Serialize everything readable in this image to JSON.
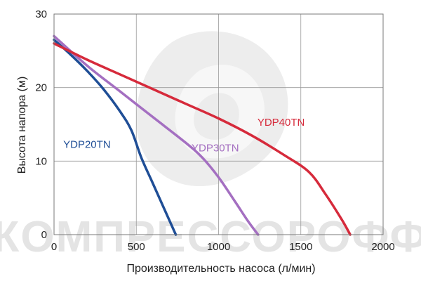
{
  "watermark_text": "КОМПРЕССОРОФФ",
  "chart_data": {
    "type": "line",
    "xlabel": "Производительность насоса (л/мин)",
    "ylabel": "Высота напора (м)",
    "xlim": [
      0,
      2000
    ],
    "ylim": [
      0,
      30
    ],
    "x_ticks": [
      "0",
      "500",
      "1000",
      "1500",
      "2000"
    ],
    "y_ticks": [
      "0",
      "10",
      "20",
      "30"
    ],
    "x_tick_values": [
      0,
      500,
      1000,
      1500,
      2000
    ],
    "y_tick_values": [
      0,
      10,
      20,
      30
    ],
    "grid": true,
    "series": [
      {
        "name": "YDP20TN",
        "color": "#1f4e96",
        "points": [
          [
            0,
            26.5
          ],
          [
            100,
            24.5
          ],
          [
            200,
            22.3
          ],
          [
            300,
            19.8
          ],
          [
            400,
            16.8
          ],
          [
            470,
            14.2
          ],
          [
            530,
            10.5
          ],
          [
            600,
            7
          ],
          [
            680,
            3
          ],
          [
            740,
            0
          ]
        ]
      },
      {
        "name": "YDP30TN",
        "color": "#a46fc1",
        "points": [
          [
            0,
            27
          ],
          [
            200,
            23
          ],
          [
            400,
            19.5
          ],
          [
            600,
            16
          ],
          [
            800,
            12.5
          ],
          [
            900,
            10.5
          ],
          [
            1000,
            7.8
          ],
          [
            1100,
            4.5
          ],
          [
            1180,
            1.8
          ],
          [
            1240,
            0
          ]
        ]
      },
      {
        "name": "YDP40TN",
        "color": "#d62a3b",
        "points": [
          [
            0,
            26
          ],
          [
            200,
            23.8
          ],
          [
            400,
            21.8
          ],
          [
            600,
            19.8
          ],
          [
            800,
            17.8
          ],
          [
            1000,
            15.8
          ],
          [
            1200,
            13.5
          ],
          [
            1400,
            10.8
          ],
          [
            1550,
            8.5
          ],
          [
            1650,
            5.5
          ],
          [
            1750,
            2
          ],
          [
            1800,
            0
          ]
        ]
      }
    ]
  }
}
